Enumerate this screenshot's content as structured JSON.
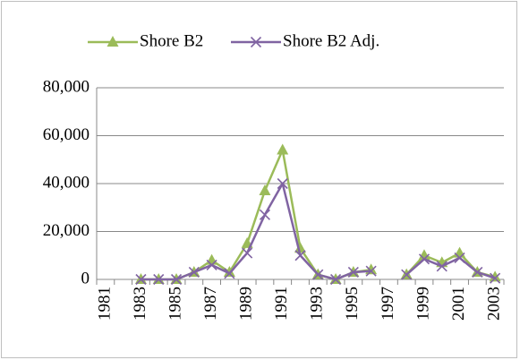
{
  "chart_data": {
    "type": "line",
    "categories": [
      "1981",
      null,
      "1983",
      null,
      "1985",
      null,
      "1987",
      null,
      "1989",
      null,
      "1991",
      null,
      "1993",
      null,
      "1995",
      null,
      "1997",
      null,
      "1999",
      null,
      "2001",
      null,
      "2003"
    ],
    "series": [
      {
        "name": "Shore B2",
        "color": "#9bbb59",
        "marker": "triangle",
        "values": [
          null,
          null,
          0,
          0,
          0,
          3000,
          8000,
          3000,
          15000,
          37000,
          54000,
          13000,
          2000,
          0,
          3000,
          4000,
          null,
          2000,
          10000,
          7000,
          11000,
          3000,
          1000
        ]
      },
      {
        "name": "Shore B2 Adj.",
        "color": "#8064a2",
        "marker": "x",
        "values": [
          null,
          null,
          0,
          0,
          0,
          3000,
          6000,
          2500,
          11000,
          27000,
          40000,
          10000,
          2000,
          0,
          3000,
          3500,
          null,
          2000,
          8500,
          5500,
          9000,
          3000,
          500
        ]
      }
    ],
    "ylim": [
      0,
      80000
    ],
    "yticks": [
      0,
      {
        "value": 20000,
        "label": "20,000"
      },
      {
        "value": 40000,
        "label": "40,000"
      },
      {
        "value": 60000,
        "label": "60,000"
      },
      {
        "value": 80000,
        "label": "80,000"
      }
    ],
    "grid": true,
    "legend": "top"
  }
}
